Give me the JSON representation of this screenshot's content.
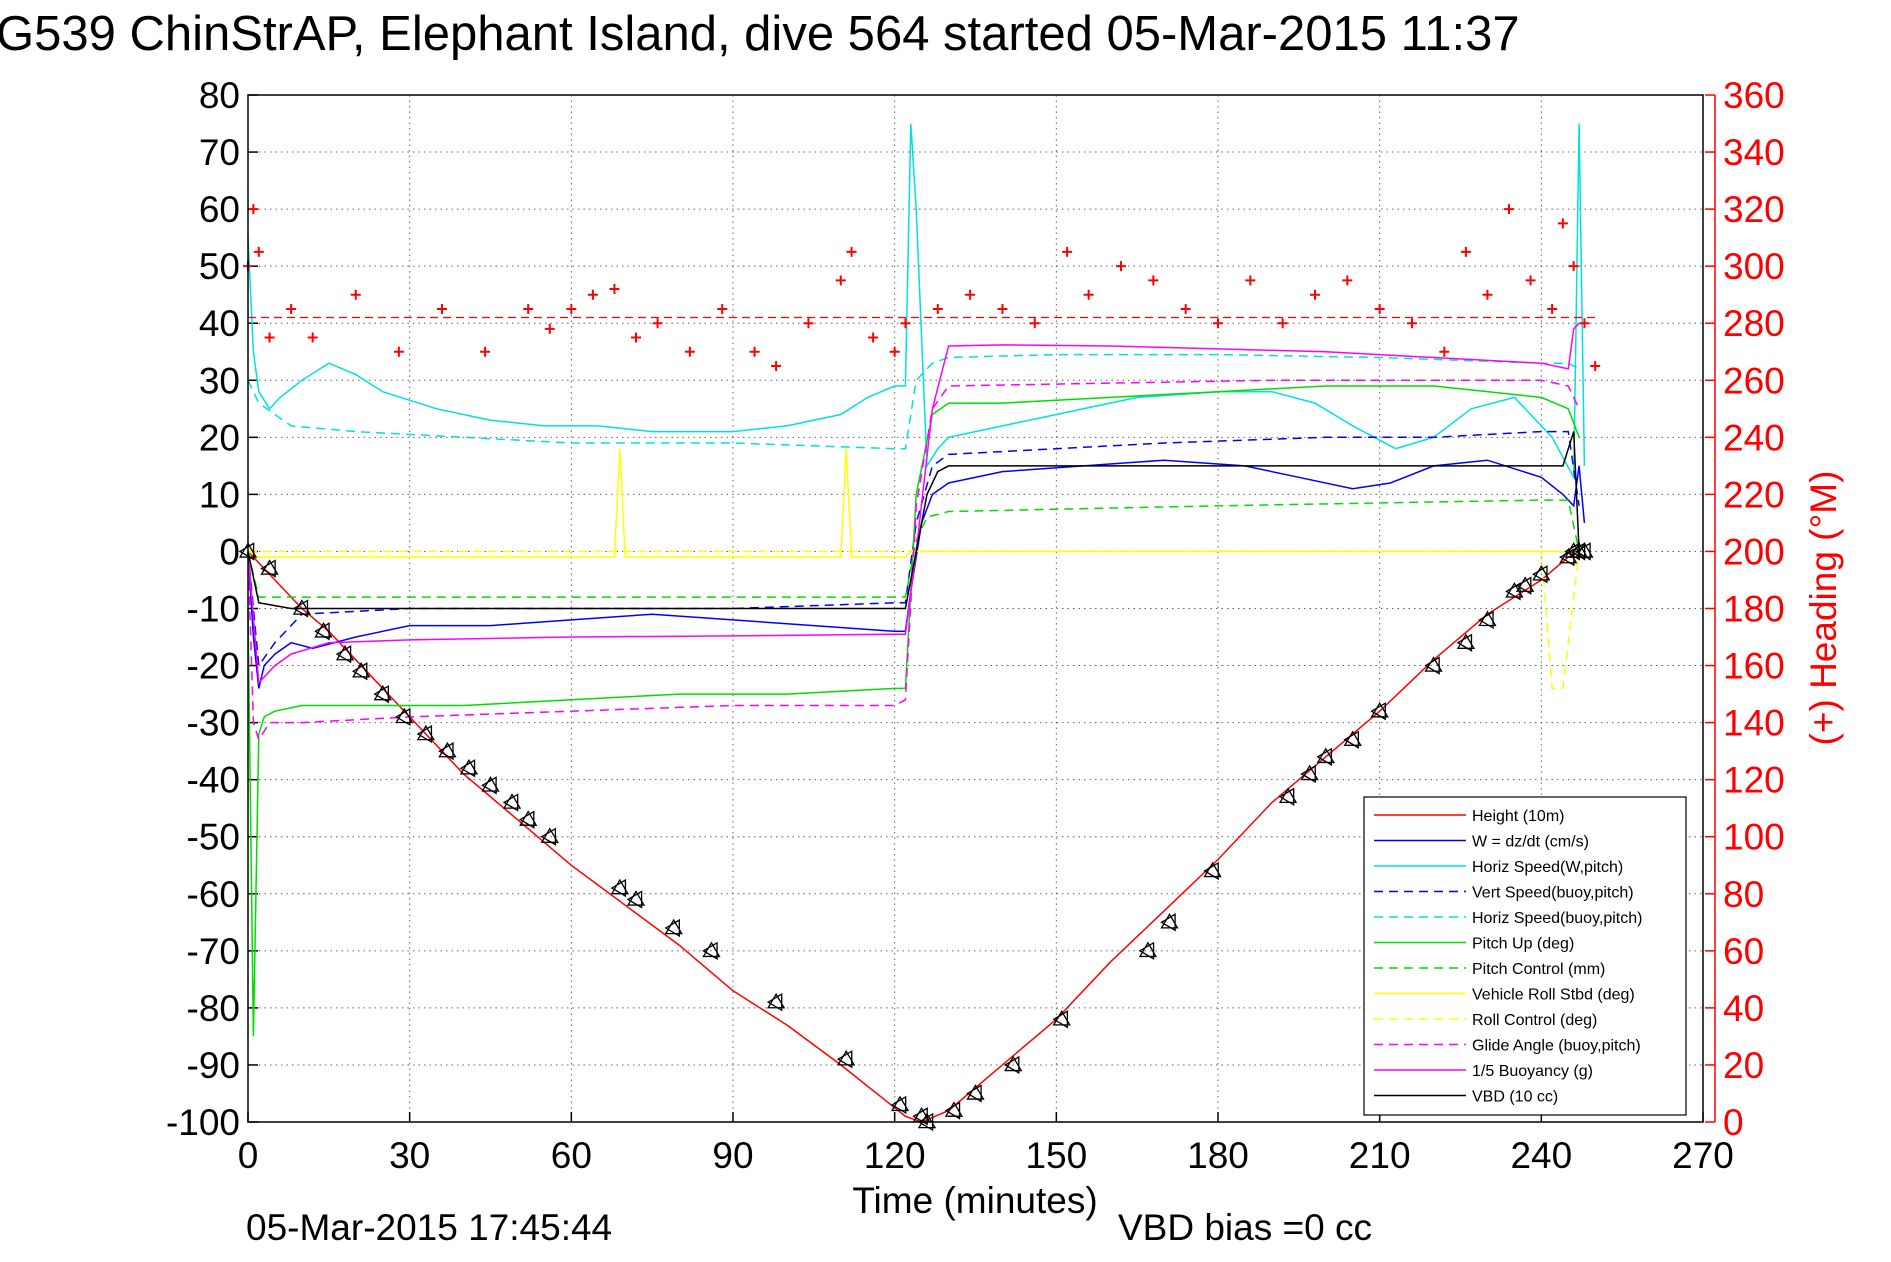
{
  "chart_data": {
    "type": "line",
    "title": "G539 ChinStrAP, Elephant Island, dive 564 started 05-Mar-2015 11:37",
    "xlabel": "Time (minutes)",
    "ylabel": "",
    "ylabel_right": "(+) Heading (°M)",
    "footer_left": "05-Mar-2015 17:45:44",
    "footer_right": "VBD bias =0 cc",
    "xlim": [
      0,
      270
    ],
    "ylim": [
      -100,
      80
    ],
    "ylim_right": [
      0,
      360
    ],
    "grid": true,
    "legend_position": "bottom-right",
    "x_ticks": [
      "0",
      "30",
      "60",
      "90",
      "120",
      "150",
      "180",
      "210",
      "240",
      "270"
    ],
    "y_ticks_left": [
      "80",
      "70",
      "60",
      "50",
      "40",
      "30",
      "20",
      "10",
      "0",
      "-10",
      "-20",
      "-30",
      "-40",
      "-50",
      "-60",
      "-70",
      "-80",
      "-90",
      "-100"
    ],
    "y_ticks_right": [
      "360",
      "340",
      "320",
      "300",
      "280",
      "260",
      "240",
      "220",
      "200",
      "180",
      "160",
      "140",
      "120",
      "100",
      "80",
      "60",
      "40",
      "20",
      "0"
    ],
    "heading_reference": 282,
    "series": [
      {
        "name": "Height (10m)",
        "color": "#ff0000",
        "dash": false,
        "x": [
          0,
          5,
          10,
          15,
          20,
          25,
          30,
          40,
          50,
          60,
          70,
          80,
          90,
          100,
          110,
          118,
          122,
          125,
          130,
          140,
          150,
          160,
          170,
          180,
          190,
          200,
          210,
          220,
          230,
          240,
          245,
          247
        ],
        "y": [
          0,
          -5,
          -10,
          -14,
          -19,
          -24,
          -29,
          -39,
          -47,
          -55,
          -62,
          -69,
          -77,
          -83,
          -90,
          -96,
          -99,
          -100,
          -98,
          -90,
          -82,
          -72,
          -63,
          -54,
          -44,
          -36,
          -28,
          -19,
          -11,
          -5,
          -1,
          0
        ]
      },
      {
        "name": "W = dz/dt (cm/s)",
        "color": "#0000ff",
        "dash": false,
        "x": [
          0,
          1,
          2,
          3,
          5,
          8,
          12,
          20,
          30,
          45,
          60,
          75,
          90,
          105,
          120,
          122,
          123,
          125,
          127,
          130,
          140,
          155,
          170,
          185,
          195,
          205,
          212,
          220,
          230,
          240,
          244,
          246,
          247,
          248
        ],
        "y": [
          0,
          -15,
          -24,
          -20,
          -18,
          -16,
          -17,
          -15,
          -13,
          -13,
          -12,
          -11,
          -12,
          -13,
          -14,
          -14,
          -7,
          5,
          10,
          12,
          14,
          15,
          16,
          15,
          13,
          11,
          12,
          15,
          16,
          13,
          10,
          8,
          15,
          5
        ]
      },
      {
        "name": "Horiz Speed(W,pitch)",
        "color": "#00e0e0",
        "dash": false,
        "x": [
          0,
          1,
          2,
          4,
          6,
          10,
          15,
          20,
          25,
          35,
          45,
          55,
          65,
          75,
          90,
          100,
          110,
          115,
          120,
          122,
          123,
          124,
          126,
          128,
          130,
          140,
          150,
          165,
          180,
          190,
          198,
          205,
          213,
          220,
          227,
          235,
          242,
          246,
          247,
          248
        ],
        "y": [
          55,
          35,
          28,
          25,
          27,
          30,
          33,
          31,
          28,
          25,
          23,
          22,
          22,
          21,
          21,
          22,
          24,
          27,
          29,
          29,
          75,
          60,
          15,
          18,
          20,
          22,
          24,
          27,
          28,
          28,
          26,
          22,
          18,
          20,
          25,
          27,
          20,
          13,
          75,
          15
        ]
      },
      {
        "name": "Vert Speed(buoy,pitch)",
        "color": "#0000ff",
        "dash": true,
        "x": [
          0,
          2,
          5,
          10,
          30,
          60,
          90,
          120,
          122,
          124,
          127,
          130,
          150,
          170,
          200,
          220,
          240,
          245,
          247
        ],
        "y": [
          0,
          -20,
          -16,
          -11,
          -10,
          -10,
          -10,
          -9,
          -9,
          5,
          15,
          17,
          18,
          19,
          20,
          20,
          21,
          21,
          8
        ]
      },
      {
        "name": "Horiz Speed(buoy,pitch)",
        "color": "#00e0e0",
        "dash": true,
        "x": [
          0,
          2,
          5,
          8,
          20,
          40,
          60,
          90,
          120,
          122,
          124,
          127,
          130,
          150,
          180,
          210,
          240,
          245,
          247
        ],
        "y": [
          30,
          26,
          24,
          22,
          21,
          20,
          19,
          19,
          18,
          18,
          30,
          33,
          34,
          34.5,
          34.5,
          34,
          33,
          33,
          32
        ]
      },
      {
        "name": "Pitch Up (deg)",
        "color": "#00dd00",
        "dash": false,
        "x": [
          0,
          1,
          2,
          3,
          5,
          10,
          20,
          40,
          60,
          80,
          100,
          120,
          122,
          124,
          127,
          130,
          140,
          160,
          180,
          200,
          220,
          240,
          245,
          247
        ],
        "y": [
          -10,
          -85,
          -32,
          -29,
          -28,
          -27,
          -27,
          -27,
          -26,
          -25,
          -25,
          -24,
          -24,
          10,
          24,
          26,
          26,
          27,
          28,
          29,
          29,
          27,
          25,
          20
        ]
      },
      {
        "name": "Pitch Control (mm)",
        "color": "#00dd00",
        "dash": true,
        "x": [
          0,
          2,
          4,
          10,
          60,
          120,
          122,
          124,
          126,
          130,
          180,
          240,
          245,
          247
        ],
        "y": [
          0,
          -8,
          -8,
          -8,
          -8,
          -8,
          -8,
          2,
          6,
          7,
          8,
          9,
          9,
          0
        ]
      },
      {
        "name": "Vehicle Roll Stbd (deg)",
        "color": "#ffff00",
        "dash": false,
        "x": [
          0,
          2,
          4,
          60,
          68,
          69,
          70,
          110,
          111,
          112,
          122,
          123,
          127,
          240,
          243,
          247
        ],
        "y": [
          0,
          -1,
          -1,
          -1,
          -1,
          18,
          -1,
          -1,
          18,
          -1,
          -1,
          0,
          0,
          0,
          0,
          0
        ]
      },
      {
        "name": "Roll Control (deg)",
        "color": "#ffff00",
        "dash": true,
        "x": [
          0,
          10,
          20,
          30,
          40,
          50,
          60,
          90,
          120,
          125,
          130,
          160,
          190,
          220,
          240,
          242,
          244,
          247
        ],
        "y": [
          0,
          0,
          0,
          0,
          0,
          0,
          0,
          0,
          0,
          0,
          0,
          0,
          0,
          0,
          0,
          -24,
          -24,
          0
        ]
      },
      {
        "name": "Glide Angle (buoy,pitch)",
        "color": "#ff00ff",
        "dash": true,
        "x": [
          0,
          1,
          2,
          4,
          10,
          30,
          60,
          90,
          120,
          122,
          124,
          127,
          130,
          160,
          190,
          220,
          240,
          245,
          247
        ],
        "y": [
          0,
          -30,
          -33,
          -30,
          -30,
          -29,
          -28,
          -27,
          -27,
          -26,
          8,
          25,
          29,
          29.5,
          30,
          30,
          30,
          29,
          25
        ]
      },
      {
        "name": "1/5 Buoyancy (g)",
        "color": "#ff00ff",
        "dash": false,
        "x": [
          0,
          2,
          5,
          8,
          15,
          30,
          60,
          90,
          120,
          122,
          124,
          127,
          130,
          140,
          160,
          180,
          200,
          220,
          240,
          245,
          246,
          247
        ],
        "y": [
          0,
          -23,
          -20,
          -18,
          -16,
          -15.5,
          -15,
          -14.8,
          -14.5,
          -14.5,
          0,
          25,
          36,
          36.2,
          36,
          35.5,
          35,
          34,
          33,
          32,
          39,
          40
        ]
      },
      {
        "name": "VBD (10 cc)",
        "color": "#000000",
        "dash": false,
        "x": [
          0,
          2,
          5,
          8,
          20,
          60,
          100,
          120,
          122,
          123,
          124,
          126,
          128,
          130,
          170,
          210,
          240,
          244,
          246,
          247
        ],
        "y": [
          0,
          -9,
          -9.5,
          -10,
          -10,
          -10,
          -10,
          -10,
          -10,
          -5,
          0,
          10,
          14,
          15,
          15,
          15,
          15,
          15,
          21,
          0
        ]
      }
    ],
    "markers": {
      "name": "sample points",
      "color": "#000000",
      "x": [
        0,
        4,
        10,
        14,
        18,
        21,
        25,
        29,
        33,
        37,
        41,
        45,
        49,
        52,
        56,
        69,
        72,
        79,
        86,
        98,
        111,
        121,
        125,
        126,
        131,
        135,
        142,
        151,
        167,
        171,
        179,
        193,
        197,
        200,
        205,
        210,
        220,
        226,
        230,
        235,
        237,
        240,
        245,
        246,
        247,
        248
      ],
      "y": [
        0,
        -3,
        -10,
        -14,
        -18,
        -21,
        -25,
        -29,
        -32,
        -35,
        -38,
        -41,
        -44,
        -47,
        -50,
        -59,
        -61,
        -66,
        -70,
        -79,
        -89,
        -97,
        -99,
        -100,
        -98,
        -95,
        -90,
        -82,
        -70,
        -65,
        -56,
        -43,
        -39,
        -36,
        -33,
        -28,
        -20,
        -16,
        -12,
        -7,
        -6,
        -4,
        -1,
        0,
        0,
        0
      ]
    },
    "heading": {
      "name": "(+) Heading (°M)",
      "color": "#ff0000",
      "x": [
        0,
        1,
        2,
        4,
        8,
        12,
        20,
        28,
        36,
        44,
        52,
        56,
        60,
        64,
        68,
        72,
        76,
        82,
        88,
        94,
        98,
        104,
        110,
        112,
        116,
        120,
        122,
        128,
        134,
        140,
        146,
        152,
        156,
        162,
        168,
        174,
        180,
        186,
        192,
        198,
        204,
        210,
        216,
        222,
        226,
        230,
        234,
        238,
        242,
        244,
        246,
        248,
        250
      ],
      "y": [
        300,
        320,
        305,
        275,
        285,
        275,
        290,
        270,
        285,
        270,
        285,
        278,
        285,
        290,
        292,
        275,
        280,
        270,
        285,
        270,
        265,
        280,
        295,
        305,
        275,
        270,
        280,
        285,
        290,
        285,
        280,
        305,
        290,
        300,
        295,
        285,
        280,
        295,
        280,
        290,
        295,
        285,
        280,
        270,
        305,
        290,
        320,
        295,
        285,
        315,
        300,
        280,
        265
      ]
    }
  }
}
